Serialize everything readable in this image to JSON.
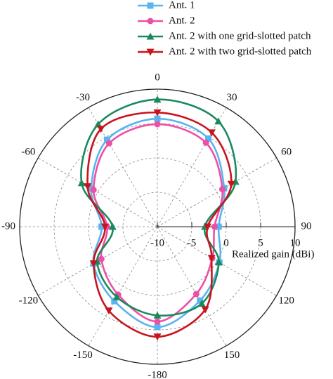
{
  "chart_data": {
    "type": "polar",
    "x": [
      -180,
      -150,
      -120,
      -90,
      -60,
      -30,
      0,
      30,
      60,
      90,
      120,
      150
    ],
    "series": [
      {
        "name": "Ant. 1",
        "color": "#5ab4ee",
        "marker": "square",
        "values": [
          4.6,
          2.5,
          0.7,
          -1.9,
          1.1,
          4.6,
          5.7,
          4.8,
          1.2,
          -1.1,
          0.4,
          2.4
        ]
      },
      {
        "name": "Ant. 2",
        "color": "#ee4fa6",
        "marker": "circle",
        "values": [
          3.8,
          1.4,
          -0.6,
          -2.7,
          0.7,
          4.0,
          4.9,
          4.1,
          0.9,
          -1.7,
          -0.8,
          1.3
        ]
      },
      {
        "name": "Ant. 2 with one grid-slotted patch",
        "color": "#1a8a5e",
        "marker": "triangle-up",
        "values": [
          2.9,
          1.8,
          0.1,
          -3.5,
          2.7,
          7.2,
          8.5,
          7.7,
          3.1,
          -3.1,
          0.3,
          2.9
        ]
      },
      {
        "name": "Ant. 2 with two grid-slotted patch",
        "color": "#c8141e",
        "marker": "triangle-down",
        "values": [
          6.0,
          4.1,
          0.7,
          -2.4,
          1.7,
          6.4,
          6.6,
          5.8,
          2.4,
          -2.7,
          -0.9,
          3.9
        ]
      }
    ],
    "rlim": [
      -10,
      10
    ],
    "rticks": [
      -10,
      -5,
      0,
      5,
      10
    ],
    "thetaticks": [
      0,
      30,
      60,
      90,
      120,
      150,
      -180,
      -150,
      -120,
      -90,
      -60,
      -30
    ],
    "rlabel": "Realized gain (dBi)",
    "grid": true
  }
}
